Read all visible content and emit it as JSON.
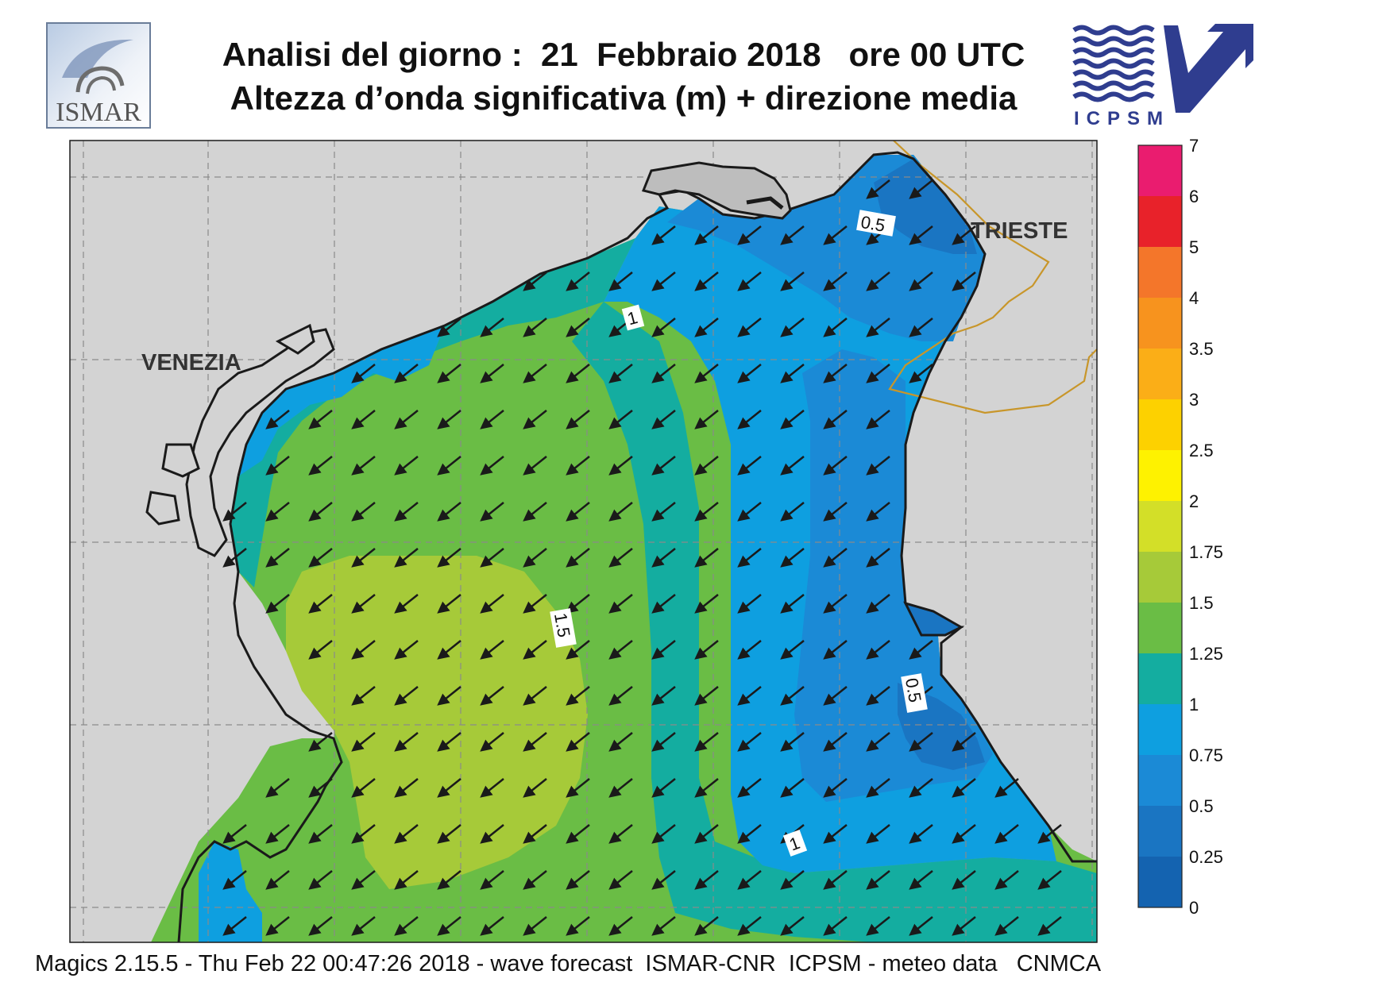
{
  "header": {
    "title_line1": "Analisi del giorno :  21  Febbraio 2018   ore 00 UTC",
    "title_line2": "Altezza d’onda significativa (m) + direzione media"
  },
  "logos": {
    "left": {
      "text": "ISMAR",
      "icon": "ismar-logo"
    },
    "right": {
      "text": "ICPSM",
      "icon": "icpsm-logo"
    }
  },
  "map": {
    "cities": [
      "VENEZIA",
      "TRIESTE"
    ],
    "contour_labels": [
      "0.5",
      "1",
      "1.5",
      "0.5",
      "1"
    ],
    "arrow_direction": "south-west",
    "colors": {
      "land": "#d3d3d3",
      "coast": "#1a1a1a",
      "border": "#c8962a",
      "grid": "#888888"
    }
  },
  "colorbar": {
    "levels": [
      "7",
      "6",
      "5",
      "4",
      "3.5",
      "3",
      "2.5",
      "2",
      "1.75",
      "1.5",
      "1.25",
      "1",
      "0.75",
      "0.5",
      "0.25",
      "0"
    ],
    "colors": [
      "#ea1c6f",
      "#e8222a",
      "#f4762a",
      "#f7931e",
      "#fbae17",
      "#fdd100",
      "#fef200",
      "#d3df28",
      "#a6ca39",
      "#6abd45",
      "#14ada0",
      "#0e9fe0",
      "#1b8ad6",
      "#1a75c2",
      "#1463b0"
    ]
  },
  "footer": {
    "text": "Magics 2.15.5 - Thu Feb 22 00:47:26 2018 - wave forecast  ISMAR-CNR  ICPSM - meteo data   CNMCA"
  }
}
